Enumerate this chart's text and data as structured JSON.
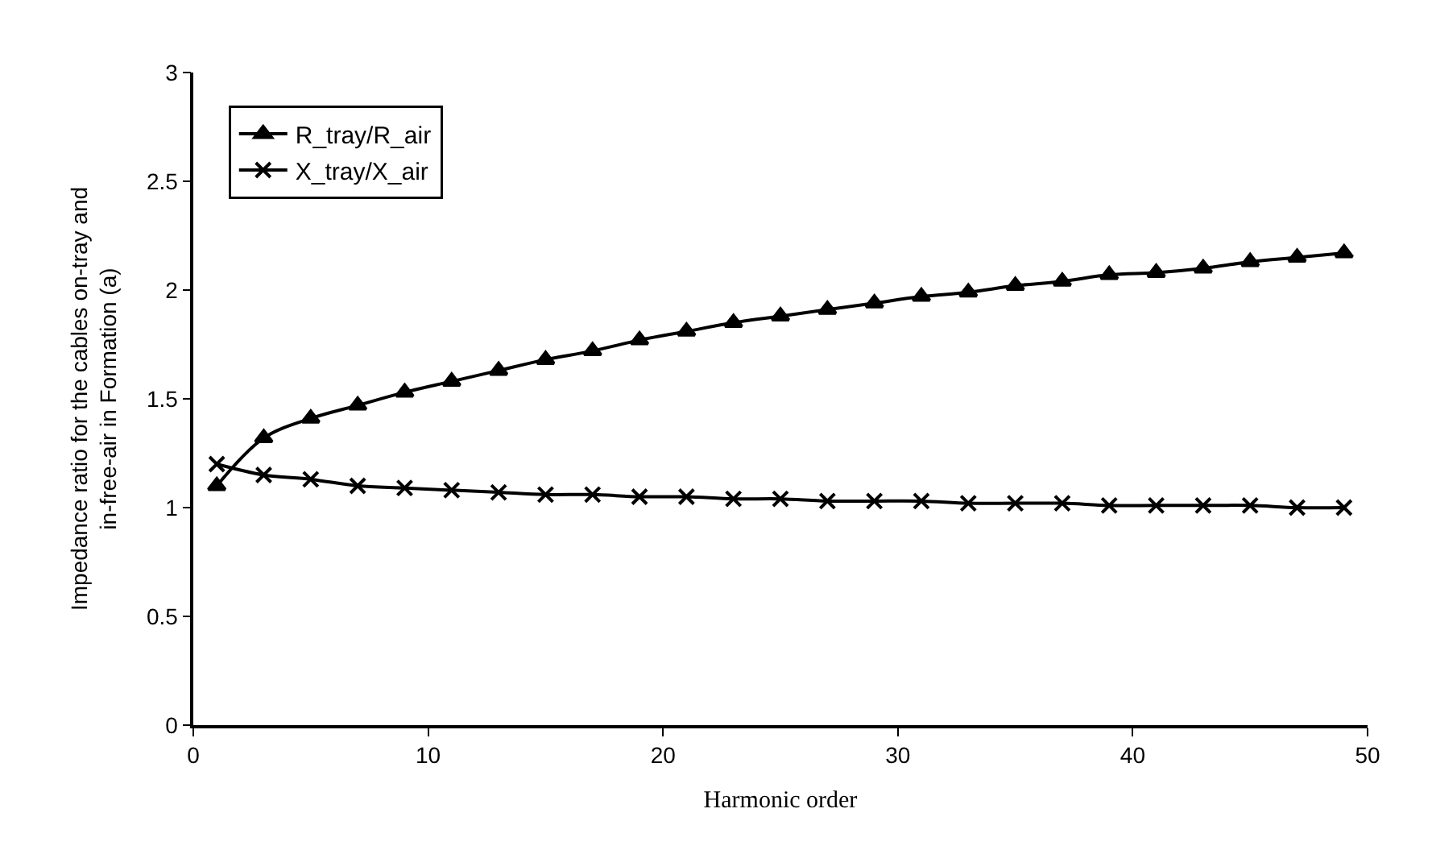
{
  "chart_data": {
    "type": "line",
    "xlabel": "Harmonic order",
    "ylabel": "Impedance ratio for the cables on-tray and\nin-free-air in Formation (a)",
    "x": [
      1,
      3,
      5,
      7,
      9,
      11,
      13,
      15,
      17,
      19,
      21,
      23,
      25,
      27,
      29,
      31,
      33,
      35,
      37,
      39,
      41,
      43,
      45,
      47,
      49
    ],
    "series": [
      {
        "name": "R_tray/R_air",
        "color": "#000000",
        "marker": "triangle",
        "values": [
          1.1,
          1.32,
          1.41,
          1.47,
          1.53,
          1.58,
          1.63,
          1.68,
          1.72,
          1.77,
          1.81,
          1.85,
          1.88,
          1.91,
          1.94,
          1.97,
          1.99,
          2.02,
          2.04,
          2.07,
          2.08,
          2.1,
          2.13,
          2.15,
          2.17
        ]
      },
      {
        "name": "X_tray/X_air",
        "color": "#000000",
        "marker": "cross",
        "values": [
          1.2,
          1.15,
          1.13,
          1.1,
          1.09,
          1.08,
          1.07,
          1.06,
          1.06,
          1.05,
          1.05,
          1.04,
          1.04,
          1.03,
          1.03,
          1.03,
          1.02,
          1.02,
          1.02,
          1.01,
          1.01,
          1.01,
          1.01,
          1.0,
          1.0
        ]
      }
    ],
    "xlim": [
      0,
      50
    ],
    "xticks": [
      0,
      10,
      20,
      30,
      40,
      50
    ],
    "ylim": [
      0,
      3
    ],
    "yticks": [
      0,
      0.5,
      1,
      1.5,
      2,
      2.5,
      3
    ],
    "legend": "top left",
    "line_style": "solid"
  }
}
